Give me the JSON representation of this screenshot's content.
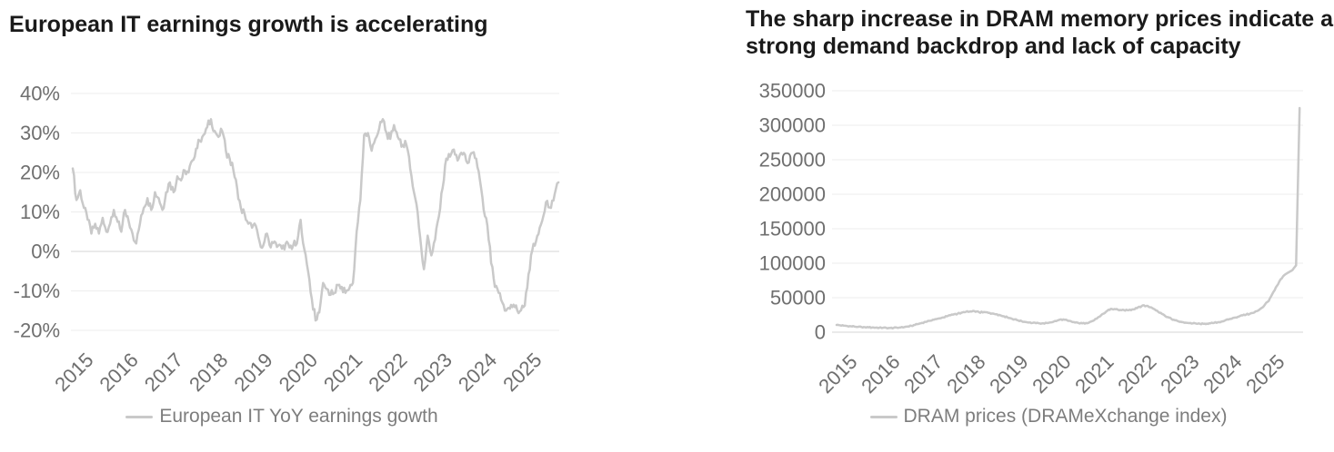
{
  "page": {
    "background": "#ffffff",
    "title_color": "#1a1a1a",
    "axis_label_color": "#6f6f6f",
    "legend_text_color": "#7d7d7d",
    "gridline_color": "#ededed",
    "axis_line_color": "#d4d4d4"
  },
  "chart_data": [
    {
      "id": "european-it-earnings",
      "type": "line",
      "title": "European IT earnings growth is accelerating",
      "legend": [
        "European IT YoY earnings gowth"
      ],
      "legend_position": "bottom",
      "line_color": "#c9c9c9",
      "grid": true,
      "x_start": "2015-01",
      "x_frequency": "monthly",
      "x_tick_labels": [
        "2015",
        "2016",
        "2017",
        "2018",
        "2019",
        "2020",
        "2021",
        "2022",
        "2023",
        "2024",
        "2025"
      ],
      "y_ticks": [
        40,
        30,
        20,
        10,
        0,
        -10,
        -20
      ],
      "y_tick_labels": [
        "40%",
        "30%",
        "20%",
        "10%",
        "0%",
        "-10%",
        "-20%"
      ],
      "ylim": [
        -20,
        40
      ],
      "y_unit": "%",
      "series": [
        {
          "name": "European IT YoY earnings gowth",
          "values": [
            21,
            13,
            15.5,
            11,
            8,
            4.5,
            7,
            4.5,
            8.5,
            5,
            7,
            10.5,
            7.5,
            5,
            10.5,
            7.5,
            4.5,
            2,
            7,
            11,
            13.5,
            10.5,
            15,
            13.5,
            10.5,
            15,
            17.5,
            15,
            19,
            18,
            20.5,
            20,
            23,
            26,
            28,
            29.5,
            31.5,
            33.5,
            30.5,
            29,
            30.5,
            25.5,
            23.5,
            20.5,
            16,
            11,
            9.5,
            7,
            6,
            6.5,
            2.5,
            1.5,
            4.5,
            1,
            2.5,
            1.5,
            0.7,
            2,
            1,
            1.5,
            2,
            8,
            0.5,
            -5,
            -12,
            -17.5,
            -15.5,
            -8,
            -9.5,
            -11,
            -10.5,
            -8.5,
            -9,
            -10.5,
            -9.5,
            -8,
            5,
            13,
            29.5,
            30,
            25.5,
            28.5,
            31,
            33.5,
            30,
            28.5,
            32,
            29,
            26.5,
            28,
            24,
            16.5,
            12,
            3.5,
            -4.5,
            4,
            -1,
            3,
            8.8,
            16,
            23.5,
            24,
            25.8,
            23,
            25,
            24.5,
            22.5,
            25,
            23.5,
            18,
            10.5,
            6.5,
            -3,
            -9,
            -10.5,
            -13,
            -15,
            -14.5,
            -13.5,
            -15,
            -14.9,
            -13.7,
            -5.8,
            0.2,
            2.5,
            6,
            9,
            12.8,
            11,
            14.5,
            17.5
          ]
        }
      ]
    },
    {
      "id": "dram-prices",
      "type": "line",
      "title": "The sharp increase in DRAM memory prices indicate a strong demand backdrop and lack of capacity",
      "title_lines": [
        "The sharp increase in DRAM memory prices indicate a",
        "strong demand backdrop and lack of capacity"
      ],
      "legend": [
        "DRAM prices (DRAMeXchange index)"
      ],
      "legend_position": "bottom",
      "line_color": "#c9c9c9",
      "grid": true,
      "x_start": "2015-01",
      "x_frequency": "monthly",
      "x_tick_labels": [
        "2015",
        "2016",
        "2017",
        "2018",
        "2019",
        "2020",
        "2021",
        "2022",
        "2023",
        "2024",
        "2025"
      ],
      "y_ticks": [
        350000,
        300000,
        250000,
        200000,
        150000,
        100000,
        50000,
        0
      ],
      "y_tick_labels": [
        "350000",
        "300000",
        "250000",
        "200000",
        "150000",
        "100000",
        "50000",
        "0"
      ],
      "ylim": [
        0,
        350000
      ],
      "y_unit": "index",
      "series": [
        {
          "name": "DRAM prices (DRAMeXchange index)",
          "values": [
            10500,
            10000,
            9500,
            9000,
            8600,
            8200,
            7800,
            7500,
            7200,
            7000,
            6800,
            6600,
            6500,
            6300,
            6200,
            6100,
            6200,
            6400,
            6800,
            7400,
            8200,
            9200,
            10500,
            12000,
            13500,
            15000,
            16500,
            18000,
            19000,
            20000,
            21500,
            23000,
            24500,
            26000,
            27000,
            28000,
            29000,
            29500,
            30000,
            29500,
            29000,
            28500,
            29000,
            28000,
            27000,
            26000,
            24500,
            23000,
            21500,
            20000,
            18500,
            17000,
            15800,
            14800,
            14000,
            13400,
            13000,
            12700,
            12900,
            13300,
            14200,
            15500,
            17000,
            18500,
            18000,
            16500,
            15200,
            14000,
            13200,
            12700,
            13300,
            14500,
            16500,
            19500,
            23000,
            27000,
            31000,
            34000,
            33500,
            32500,
            31800,
            31300,
            31800,
            33000,
            35000,
            37000,
            39000,
            38200,
            36200,
            33800,
            31200,
            28200,
            24800,
            21800,
            19200,
            17200,
            15600,
            14600,
            13800,
            13200,
            12800,
            12400,
            12200,
            12100,
            12400,
            12900,
            13600,
            14400,
            15300,
            16800,
            18300,
            19800,
            21300,
            22800,
            24300,
            25500,
            26500,
            28000,
            30500,
            34000,
            38000,
            44000,
            52000,
            61000,
            70000,
            78000,
            84000,
            87000,
            90000,
            97000,
            325000
          ]
        }
      ]
    }
  ]
}
